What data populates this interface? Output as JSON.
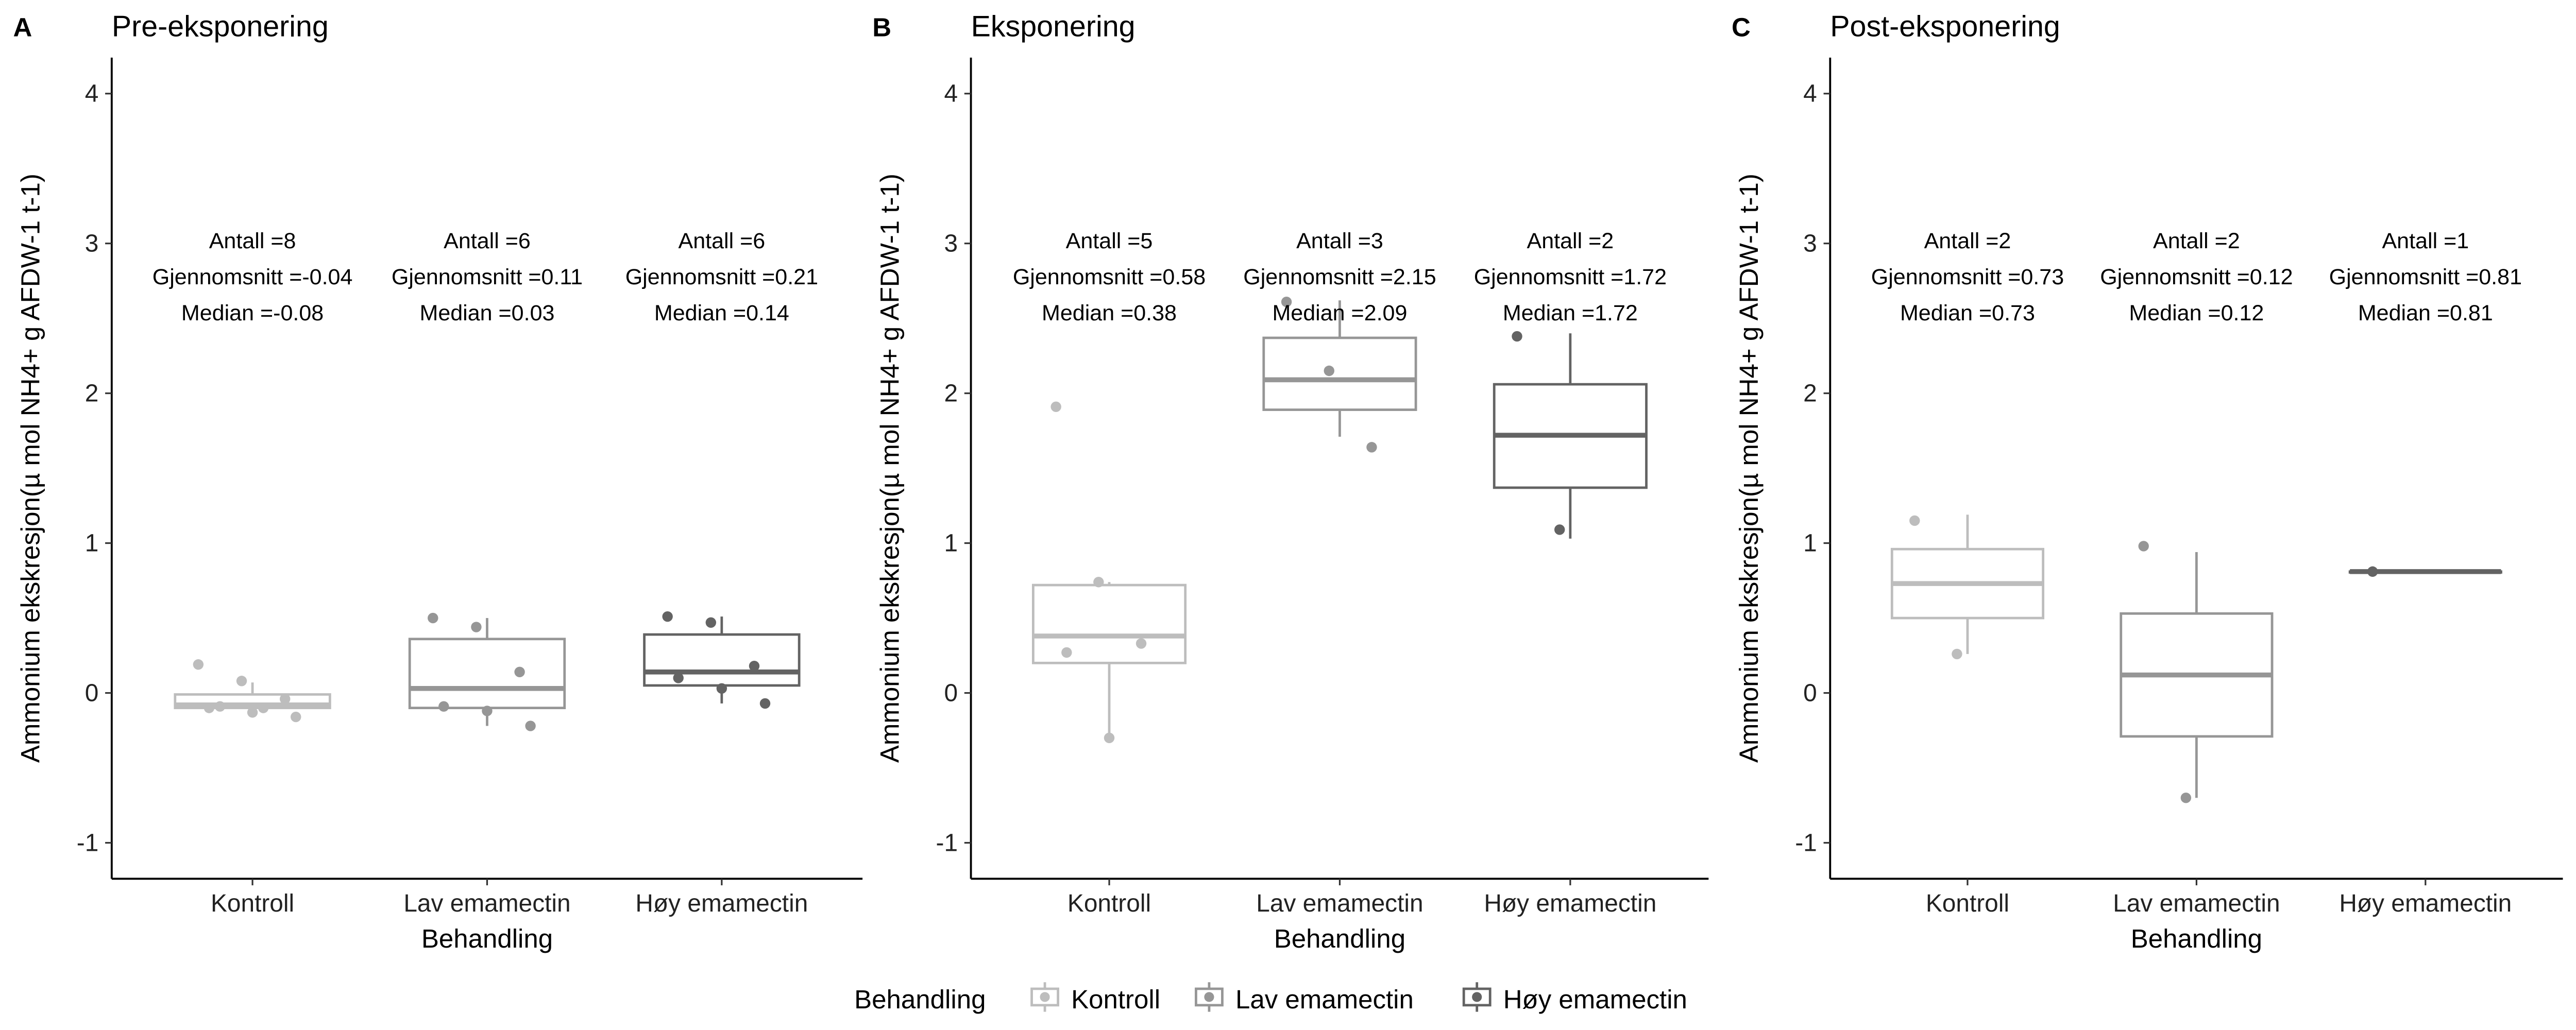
{
  "chart_data": [
    {
      "type": "box",
      "tag": "A",
      "title": "Pre-eksponering",
      "xlabel": "Behandling",
      "ylabel": "Ammonium ekskresjon(µ mol NH4+ g AFDW-1 t-1)",
      "ylim": [
        -1.24,
        4.24
      ],
      "yticks": [
        -1,
        0,
        1,
        2,
        3,
        4
      ],
      "categories": [
        "Kontroll",
        "Lav emamectin",
        "Høy emamectin"
      ],
      "groups": [
        {
          "n": "Antall =8",
          "mean": "Gjennomsnitt =-0.04",
          "median_label": "Median =-0.08",
          "box": {
            "low": -0.1,
            "q1": -0.1,
            "median": -0.08,
            "q3": -0.01,
            "high": 0.07
          },
          "points": [
            0.19,
            0.08,
            -0.04,
            -0.1,
            -0.13,
            -0.16,
            -0.09,
            -0.1
          ]
        },
        {
          "n": "Antall =6",
          "mean": "Gjennomsnitt =0.11",
          "median_label": "Median =0.03",
          "box": {
            "low": -0.22,
            "q1": -0.1,
            "median": 0.03,
            "q3": 0.36,
            "high": 0.5
          },
          "points": [
            0.5,
            0.44,
            0.14,
            -0.09,
            -0.12,
            -0.22
          ]
        },
        {
          "n": "Antall =6",
          "mean": "Gjennomsnitt =0.21",
          "median_label": "Median =0.14",
          "box": {
            "low": -0.07,
            "q1": 0.05,
            "median": 0.14,
            "q3": 0.39,
            "high": 0.51
          },
          "points": [
            0.51,
            0.47,
            0.18,
            0.1,
            0.03,
            -0.07
          ]
        }
      ]
    },
    {
      "type": "box",
      "tag": "B",
      "title": "Eksponering",
      "xlabel": "Behandling",
      "ylabel": "Ammonium ekskresjon(µ mol NH4+ g AFDW-1 t-1)",
      "ylim": [
        -1.24,
        4.24
      ],
      "yticks": [
        -1,
        0,
        1,
        2,
        3,
        4
      ],
      "categories": [
        "Kontroll",
        "Lav emamectin",
        "Høy emamectin"
      ],
      "groups": [
        {
          "n": "Antall =5",
          "mean": "Gjennomsnitt =0.58",
          "median_label": "Median =0.38",
          "box": {
            "low": -0.3,
            "q1": 0.2,
            "median": 0.38,
            "q3": 0.72,
            "high": 0.74
          },
          "points": [
            1.91,
            0.74,
            0.33,
            0.27,
            -0.3
          ]
        },
        {
          "n": "Antall =3",
          "mean": "Gjennomsnitt =2.15",
          "median_label": "Median =2.09",
          "box": {
            "low": 1.71,
            "q1": 1.89,
            "median": 2.09,
            "q3": 2.37,
            "high": 2.62
          },
          "points": [
            2.61,
            2.15,
            1.64
          ]
        },
        {
          "n": "Antall =2",
          "mean": "Gjennomsnitt =1.72",
          "median_label": "Median =1.72",
          "box": {
            "low": 1.03,
            "q1": 1.37,
            "median": 1.72,
            "q3": 2.06,
            "high": 2.4
          },
          "points": [
            2.38,
            1.09
          ]
        }
      ]
    },
    {
      "type": "box",
      "tag": "C",
      "title": "Post-eksponering",
      "xlabel": "Behandling",
      "ylabel": "Ammonium ekskresjon(µ mol NH4+ g AFDW-1 t-1)",
      "ylim": [
        -1.24,
        4.24
      ],
      "yticks": [
        -1,
        0,
        1,
        2,
        3,
        4
      ],
      "categories": [
        "Kontroll",
        "Lav emamectin",
        "Høy emamectin"
      ],
      "groups": [
        {
          "n": "Antall =2",
          "mean": "Gjennomsnitt =0.73",
          "median_label": "Median =0.73",
          "box": {
            "low": 0.26,
            "q1": 0.5,
            "median": 0.73,
            "q3": 0.96,
            "high": 1.19
          },
          "points": [
            1.15,
            0.26
          ]
        },
        {
          "n": "Antall =2",
          "mean": "Gjennomsnitt =0.12",
          "median_label": "Median =0.12",
          "box": {
            "low": -0.7,
            "q1": -0.29,
            "median": 0.12,
            "q3": 0.53,
            "high": 0.94
          },
          "points": [
            0.98,
            -0.7
          ]
        },
        {
          "n": "Antall =1",
          "mean": "Gjennomsnitt =0.81",
          "median_label": "Median =0.81",
          "box": {
            "low": 0.81,
            "q1": 0.81,
            "median": 0.81,
            "q3": 0.81,
            "high": 0.81
          },
          "points": [
            0.81
          ]
        }
      ]
    }
  ],
  "colors": [
    "#bdbdbd",
    "#969696",
    "#636363"
  ],
  "legend": {
    "title": "Behandling",
    "position": "bottom",
    "items": [
      "Kontroll",
      "Lav emamectin",
      "Høy emamectin"
    ]
  }
}
